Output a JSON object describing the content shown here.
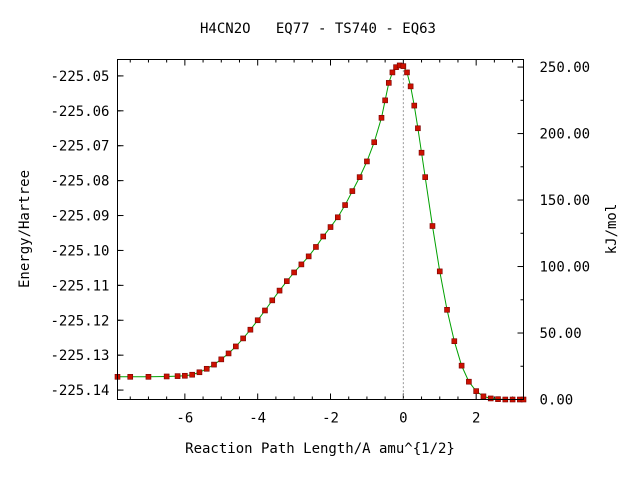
{
  "chart_data": {
    "type": "line",
    "title": "H4CN2O   EQ77 - TS740 - EQ63",
    "xlabel": "Reaction Path Length/A amu^{1/2}",
    "ylabel_left": "Energy/Hartree",
    "ylabel_right": "kJ/mol",
    "xlim": [
      -7.85,
      3.3
    ],
    "ylim_left": [
      -225.1427,
      -225.0453
    ],
    "ylim_right": [
      0,
      255.7
    ],
    "x_ticks": [
      -6,
      -4,
      -2,
      0,
      2
    ],
    "x_tick_labels": [
      "-6",
      "-4",
      "-2",
      "0",
      "2"
    ],
    "y_left_ticks": [
      -225.05,
      -225.06,
      -225.07,
      -225.08,
      -225.09,
      -225.1,
      -225.11,
      -225.12,
      -225.13,
      -225.14
    ],
    "y_left_tick_labels": [
      "-225.05",
      "-225.06",
      "-225.07",
      "-225.08",
      "-225.09",
      "-225.10",
      "-225.11",
      "-225.12",
      "-225.13",
      "-225.14"
    ],
    "y_right_ticks": [
      0,
      50,
      100,
      150,
      200,
      250
    ],
    "y_right_tick_labels": [
      "0.00",
      "50.00",
      "100.00",
      "150.00",
      "200.00",
      "250.00"
    ],
    "ts_marker_x": 0,
    "grid": false,
    "colors": {
      "line": "#00a000",
      "marker": "#cc1100",
      "marker_edge": "#7a0000",
      "ts_line": "#999999"
    },
    "series": [
      {
        "x": [
          -7.85,
          -7.5,
          -7.0,
          -6.5,
          -6.2,
          -6.0,
          -5.8,
          -5.6,
          -5.4,
          -5.2,
          -5.0,
          -4.8,
          -4.6,
          -4.4,
          -4.2,
          -4.0,
          -3.8,
          -3.6,
          -3.4,
          -3.2,
          -3.0,
          -2.8,
          -2.6,
          -2.4,
          -2.2,
          -2.0,
          -1.8,
          -1.6,
          -1.4,
          -1.2,
          -1.0,
          -0.8,
          -0.6,
          -0.5,
          -0.4,
          -0.3,
          -0.2,
          -0.1,
          0.0,
          0.1,
          0.2,
          0.3,
          0.4,
          0.5,
          0.6,
          0.8,
          1.0,
          1.2,
          1.4,
          1.6,
          1.8,
          2.0,
          2.2,
          2.4,
          2.6,
          2.8,
          3.0,
          3.2,
          3.3
        ],
        "y": [
          -225.1362,
          -225.1362,
          -225.1362,
          -225.1361,
          -225.136,
          -225.1359,
          -225.1356,
          -225.1349,
          -225.1339,
          -225.1327,
          -225.1312,
          -225.1295,
          -225.1275,
          -225.1252,
          -225.1227,
          -225.12,
          -225.1172,
          -225.1143,
          -225.1115,
          -225.1088,
          -225.1063,
          -225.104,
          -225.1017,
          -225.099,
          -225.096,
          -225.0933,
          -225.0905,
          -225.087,
          -225.083,
          -225.079,
          -225.0745,
          -225.069,
          -225.062,
          -225.057,
          -225.052,
          -225.049,
          -225.0475,
          -225.047,
          -225.0472,
          -225.049,
          -225.053,
          -225.0585,
          -225.065,
          -225.072,
          -225.079,
          -225.093,
          -225.106,
          -225.117,
          -225.126,
          -225.133,
          -225.1376,
          -225.1403,
          -225.1418,
          -225.1424,
          -225.1426,
          -225.1427,
          -225.1427,
          -225.1427,
          -225.1427
        ]
      }
    ]
  }
}
